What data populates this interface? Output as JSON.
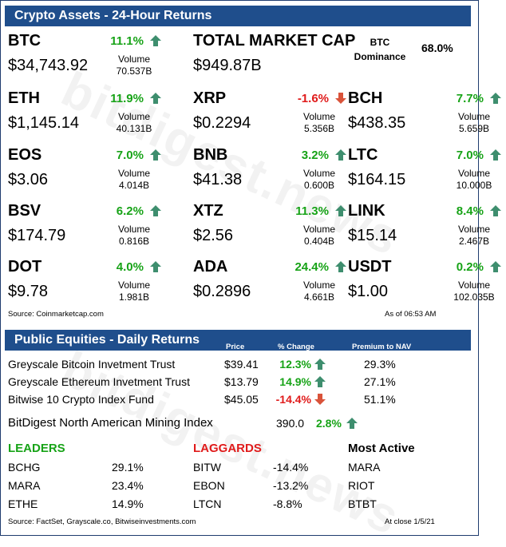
{
  "crypto": {
    "header": "Crypto Assets - 24-Hour Returns",
    "volume_label": "Volume",
    "total_market_cap": {
      "label": "TOTAL MARKET CAP",
      "value": "$949.87B"
    },
    "btc_dominance": {
      "label_line1": "BTC",
      "label_line2": "Dominance",
      "value": "68.0%"
    },
    "assets": [
      {
        "symbol": "BTC",
        "price": "$34,743.92",
        "change": "11.1%",
        "direction": "up",
        "volume": "70.537B"
      },
      {
        "symbol": "ETH",
        "price": "$1,145.14",
        "change": "11.9%",
        "direction": "up",
        "volume": "40.131B"
      },
      {
        "symbol": "XRP",
        "price": "$0.2294",
        "change": "-1.6%",
        "direction": "down",
        "volume": "5.356B"
      },
      {
        "symbol": "BCH",
        "price": "$438.35",
        "change": "7.7%",
        "direction": "up",
        "volume": "5.659B"
      },
      {
        "symbol": "EOS",
        "price": "$3.06",
        "change": "7.0%",
        "direction": "up",
        "volume": "4.014B"
      },
      {
        "symbol": "BNB",
        "price": "$41.38",
        "change": "3.2%",
        "direction": "up",
        "volume": "0.600B"
      },
      {
        "symbol": "LTC",
        "price": "$164.15",
        "change": "7.0%",
        "direction": "up",
        "volume": "10.000B"
      },
      {
        "symbol": "BSV",
        "price": "$174.79",
        "change": "6.2%",
        "direction": "up",
        "volume": "0.816B"
      },
      {
        "symbol": "XTZ",
        "price": "$2.56",
        "change": "11.3%",
        "direction": "up",
        "volume": "0.404B"
      },
      {
        "symbol": "LINK",
        "price": "$15.14",
        "change": "8.4%",
        "direction": "up",
        "volume": "2.467B"
      },
      {
        "symbol": "DOT",
        "price": "$9.78",
        "change": "4.0%",
        "direction": "up",
        "volume": "1.981B"
      },
      {
        "symbol": "ADA",
        "price": "$0.2896",
        "change": "24.4%",
        "direction": "up",
        "volume": "4.661B"
      },
      {
        "symbol": "USDT",
        "price": "$1.00",
        "change": "0.2%",
        "direction": "up",
        "volume": "102.035B"
      }
    ],
    "source": "Source: Coinmarketcap.com",
    "as_of": "As of 06:53 AM"
  },
  "equities": {
    "header": "Public Equities - Daily Returns",
    "columns": {
      "price": "Price",
      "change": "% Change",
      "premium": "Premium to NAV"
    },
    "rows": [
      {
        "name": "Greyscale Bitcoin Invetment Trust",
        "price": "$39.41",
        "change": "12.3%",
        "direction": "up",
        "premium": "29.3%"
      },
      {
        "name": "Greyscale Ethereum Invetment Trust",
        "price": "$13.79",
        "change": "14.9%",
        "direction": "up",
        "premium": "27.1%"
      },
      {
        "name": "Bitwise 10 Crypto Index Fund",
        "price": "$45.05",
        "change": "-14.4%",
        "direction": "down",
        "premium": "51.1%"
      }
    ],
    "mining_index": {
      "name": "BitDigest North American Mining Index",
      "value": "390.0",
      "change": "2.8%",
      "direction": "up"
    },
    "leaders": {
      "title": "LEADERS",
      "items": [
        {
          "ticker": "BCHG",
          "change": "29.1%"
        },
        {
          "ticker": "MARA",
          "change": "23.4%"
        },
        {
          "ticker": "ETHE",
          "change": "14.9%"
        }
      ]
    },
    "laggards": {
      "title": "LAGGARDS",
      "items": [
        {
          "ticker": "BITW",
          "change": "-14.4%"
        },
        {
          "ticker": "EBON",
          "change": "-13.2%"
        },
        {
          "ticker": "LTCN",
          "change": "-8.8%"
        }
      ]
    },
    "most_active": {
      "title": "Most Active",
      "items": [
        "MARA",
        "RIOT",
        "BTBT"
      ]
    },
    "source": "Source: FactSet, Grayscale.co, Bitwiseinvestments.com",
    "at_close": "At close 1/5/21"
  },
  "watermark": "bitdigest.news",
  "colors": {
    "header_bg": "#1f4e8c",
    "up": "#17a317",
    "down": "#e01b1b",
    "arrow_up": "#3e8e6e",
    "arrow_down": "#d9533a",
    "leaders": "#17a317",
    "laggards": "#e01b1b"
  }
}
